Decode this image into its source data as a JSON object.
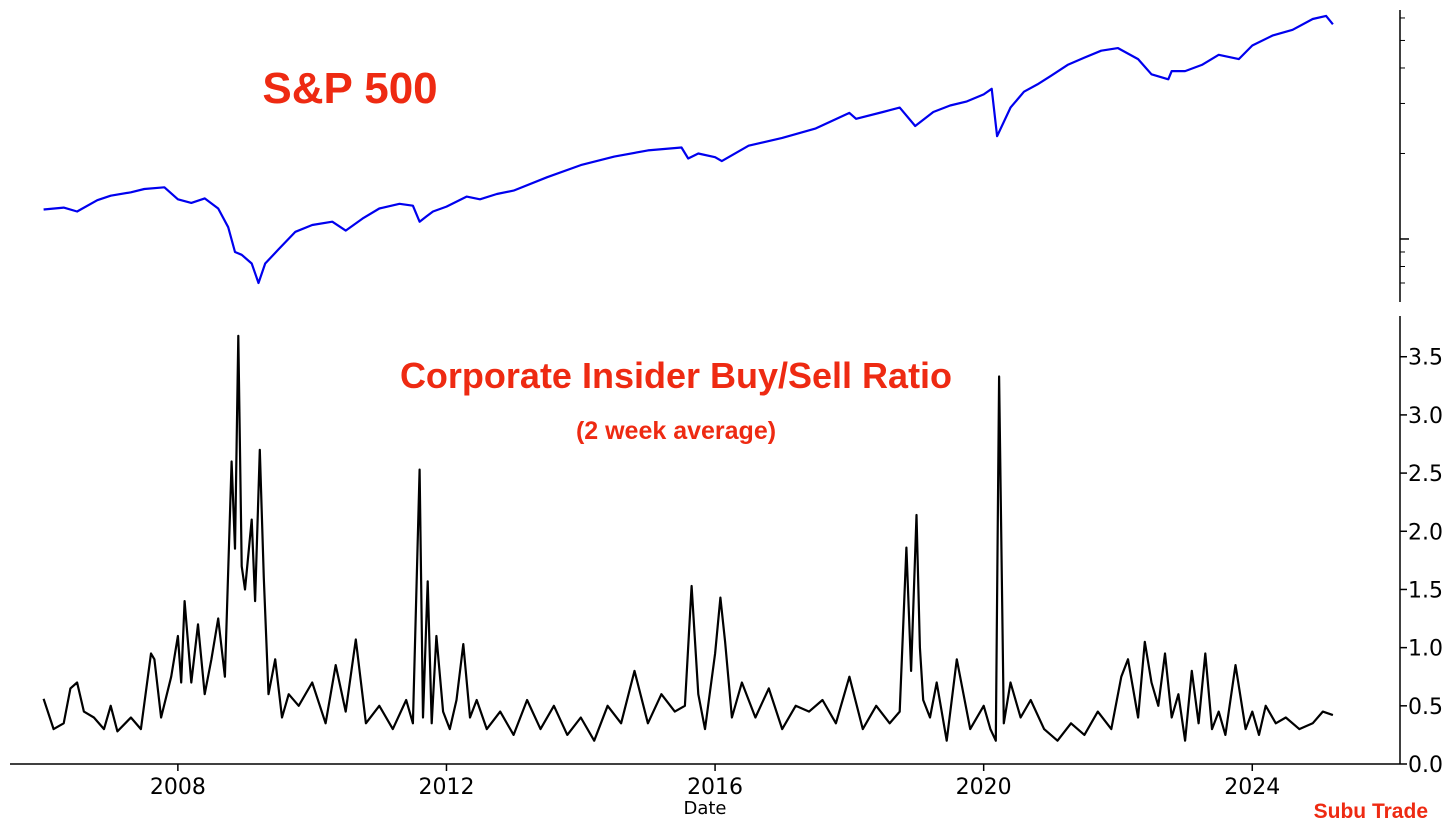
{
  "colors": {
    "sp500_line": "#0000ee",
    "ratio_line": "#000000",
    "title_red": "#ee2a12",
    "axis": "#000000"
  },
  "watermark": "Subu Trade",
  "chart_data": [
    {
      "type": "line",
      "title": "S&P 500",
      "scale": "log",
      "ylim": [
        600,
        6400
      ],
      "xlim": [
        2005.5,
        2026.2
      ],
      "y_ticks_major": [
        1000
      ],
      "y_ticks_minor": [
        700,
        800,
        900,
        2000,
        3000,
        4000,
        5000,
        6000
      ],
      "y_tick_labels_shown": false,
      "grid": false,
      "series": [
        {
          "x": [
            2006.0,
            2006.3,
            2006.5,
            2006.8,
            2007.0,
            2007.3,
            2007.5,
            2007.8,
            2008.0,
            2008.2,
            2008.4,
            2008.6,
            2008.75,
            2008.85,
            2008.95,
            2009.1,
            2009.2,
            2009.3,
            2009.5,
            2009.75,
            2010.0,
            2010.3,
            2010.5,
            2010.75,
            2011.0,
            2011.3,
            2011.5,
            2011.6,
            2011.7,
            2011.8,
            2012.0,
            2012.3,
            2012.5,
            2012.75,
            2013.0,
            2013.5,
            2014.0,
            2014.5,
            2015.0,
            2015.5,
            2015.6,
            2015.75,
            2016.0,
            2016.1,
            2016.5,
            2017.0,
            2017.5,
            2018.0,
            2018.1,
            2018.5,
            2018.75,
            2018.98,
            2019.25,
            2019.5,
            2019.75,
            2020.0,
            2020.12,
            2020.2,
            2020.4,
            2020.6,
            2020.8,
            2021.0,
            2021.25,
            2021.5,
            2021.75,
            2022.0,
            2022.3,
            2022.5,
            2022.75,
            2022.8,
            2023.0,
            2023.25,
            2023.5,
            2023.8,
            2024.0,
            2024.3,
            2024.6,
            2024.9,
            2025.1,
            2025.2
          ],
          "y": [
            1270,
            1290,
            1250,
            1370,
            1420,
            1460,
            1500,
            1520,
            1380,
            1340,
            1390,
            1280,
            1100,
            900,
            880,
            820,
            700,
            820,
            920,
            1060,
            1120,
            1150,
            1070,
            1180,
            1280,
            1330,
            1310,
            1150,
            1200,
            1250,
            1300,
            1410,
            1380,
            1440,
            1480,
            1650,
            1820,
            1950,
            2050,
            2100,
            1920,
            2000,
            1940,
            1880,
            2130,
            2270,
            2450,
            2780,
            2650,
            2800,
            2900,
            2500,
            2800,
            2950,
            3050,
            3230,
            3380,
            2300,
            2900,
            3300,
            3500,
            3750,
            4100,
            4350,
            4600,
            4700,
            4300,
            3800,
            3650,
            3900,
            3900,
            4100,
            4450,
            4300,
            4800,
            5200,
            5450,
            5950,
            6100,
            5700
          ]
        }
      ]
    },
    {
      "type": "line",
      "title": "Corporate Insider Buy/Sell Ratio",
      "subtitle": "(2 week average)",
      "xlabel": "Date",
      "ylabel": "",
      "xlim": [
        2005.5,
        2026.2
      ],
      "ylim": [
        0,
        3.85
      ],
      "x_ticks": [
        2008,
        2012,
        2016,
        2020,
        2024
      ],
      "x_tick_labels": [
        "2008",
        "2012",
        "2016",
        "2020",
        "2024"
      ],
      "y_ticks": [
        0.0,
        0.5,
        1.0,
        1.5,
        2.0,
        2.5,
        3.0,
        3.5
      ],
      "y_tick_labels": [
        "0.0",
        "0.5",
        "1.0",
        "1.5",
        "2.0",
        "2.5",
        "3.0",
        "3.5"
      ],
      "y_axis_side": "right",
      "grid": false,
      "series": [
        {
          "x": [
            2006.0,
            2006.15,
            2006.3,
            2006.4,
            2006.5,
            2006.6,
            2006.75,
            2006.9,
            2007.0,
            2007.1,
            2007.3,
            2007.45,
            2007.6,
            2007.65,
            2007.75,
            2007.9,
            2008.0,
            2008.05,
            2008.1,
            2008.2,
            2008.3,
            2008.4,
            2008.5,
            2008.6,
            2008.7,
            2008.8,
            2008.85,
            2008.9,
            2008.95,
            2009.0,
            2009.1,
            2009.15,
            2009.22,
            2009.28,
            2009.35,
            2009.45,
            2009.55,
            2009.65,
            2009.8,
            2010.0,
            2010.2,
            2010.35,
            2010.5,
            2010.65,
            2010.8,
            2011.0,
            2011.2,
            2011.4,
            2011.5,
            2011.6,
            2011.65,
            2011.72,
            2011.78,
            2011.85,
            2011.95,
            2012.05,
            2012.15,
            2012.25,
            2012.35,
            2012.45,
            2012.6,
            2012.8,
            2013.0,
            2013.2,
            2013.4,
            2013.6,
            2013.8,
            2014.0,
            2014.2,
            2014.4,
            2014.6,
            2014.8,
            2015.0,
            2015.2,
            2015.4,
            2015.55,
            2015.65,
            2015.75,
            2015.85,
            2016.0,
            2016.08,
            2016.15,
            2016.25,
            2016.4,
            2016.6,
            2016.8,
            2017.0,
            2017.2,
            2017.4,
            2017.6,
            2017.8,
            2018.0,
            2018.2,
            2018.4,
            2018.6,
            2018.75,
            2018.85,
            2018.92,
            2019.0,
            2019.05,
            2019.1,
            2019.2,
            2019.3,
            2019.45,
            2019.6,
            2019.8,
            2020.0,
            2020.1,
            2020.18,
            2020.23,
            2020.3,
            2020.4,
            2020.55,
            2020.7,
            2020.9,
            2021.1,
            2021.3,
            2021.5,
            2021.7,
            2021.9,
            2022.05,
            2022.15,
            2022.3,
            2022.4,
            2022.5,
            2022.6,
            2022.7,
            2022.8,
            2022.9,
            2023.0,
            2023.1,
            2023.2,
            2023.3,
            2023.4,
            2023.5,
            2023.6,
            2023.75,
            2023.9,
            2024.0,
            2024.1,
            2024.2,
            2024.35,
            2024.5,
            2024.7,
            2024.9,
            2025.05,
            2025.2
          ],
          "y": [
            0.56,
            0.3,
            0.35,
            0.65,
            0.7,
            0.45,
            0.4,
            0.3,
            0.5,
            0.28,
            0.4,
            0.3,
            0.95,
            0.9,
            0.4,
            0.75,
            1.1,
            0.7,
            1.4,
            0.7,
            1.2,
            0.6,
            0.9,
            1.25,
            0.75,
            2.6,
            1.85,
            3.68,
            1.7,
            1.5,
            2.1,
            1.4,
            2.7,
            1.6,
            0.6,
            0.9,
            0.4,
            0.6,
            0.5,
            0.7,
            0.35,
            0.85,
            0.45,
            1.07,
            0.35,
            0.5,
            0.3,
            0.55,
            0.35,
            2.53,
            0.4,
            1.57,
            0.35,
            1.1,
            0.45,
            0.3,
            0.55,
            1.03,
            0.4,
            0.55,
            0.3,
            0.45,
            0.25,
            0.55,
            0.3,
            0.5,
            0.25,
            0.4,
            0.2,
            0.5,
            0.35,
            0.8,
            0.35,
            0.6,
            0.45,
            0.5,
            1.53,
            0.6,
            0.3,
            0.95,
            1.43,
            1.05,
            0.4,
            0.7,
            0.4,
            0.65,
            0.3,
            0.5,
            0.45,
            0.55,
            0.35,
            0.75,
            0.3,
            0.5,
            0.35,
            0.45,
            1.86,
            0.8,
            2.14,
            1.0,
            0.55,
            0.4,
            0.7,
            0.2,
            0.9,
            0.3,
            0.5,
            0.3,
            0.2,
            3.33,
            0.35,
            0.7,
            0.4,
            0.55,
            0.3,
            0.2,
            0.35,
            0.25,
            0.45,
            0.3,
            0.75,
            0.9,
            0.4,
            1.05,
            0.7,
            0.5,
            0.95,
            0.4,
            0.6,
            0.2,
            0.8,
            0.35,
            0.95,
            0.3,
            0.45,
            0.25,
            0.85,
            0.3,
            0.45,
            0.25,
            0.5,
            0.35,
            0.4,
            0.3,
            0.35,
            0.45,
            0.42
          ]
        }
      ]
    }
  ]
}
